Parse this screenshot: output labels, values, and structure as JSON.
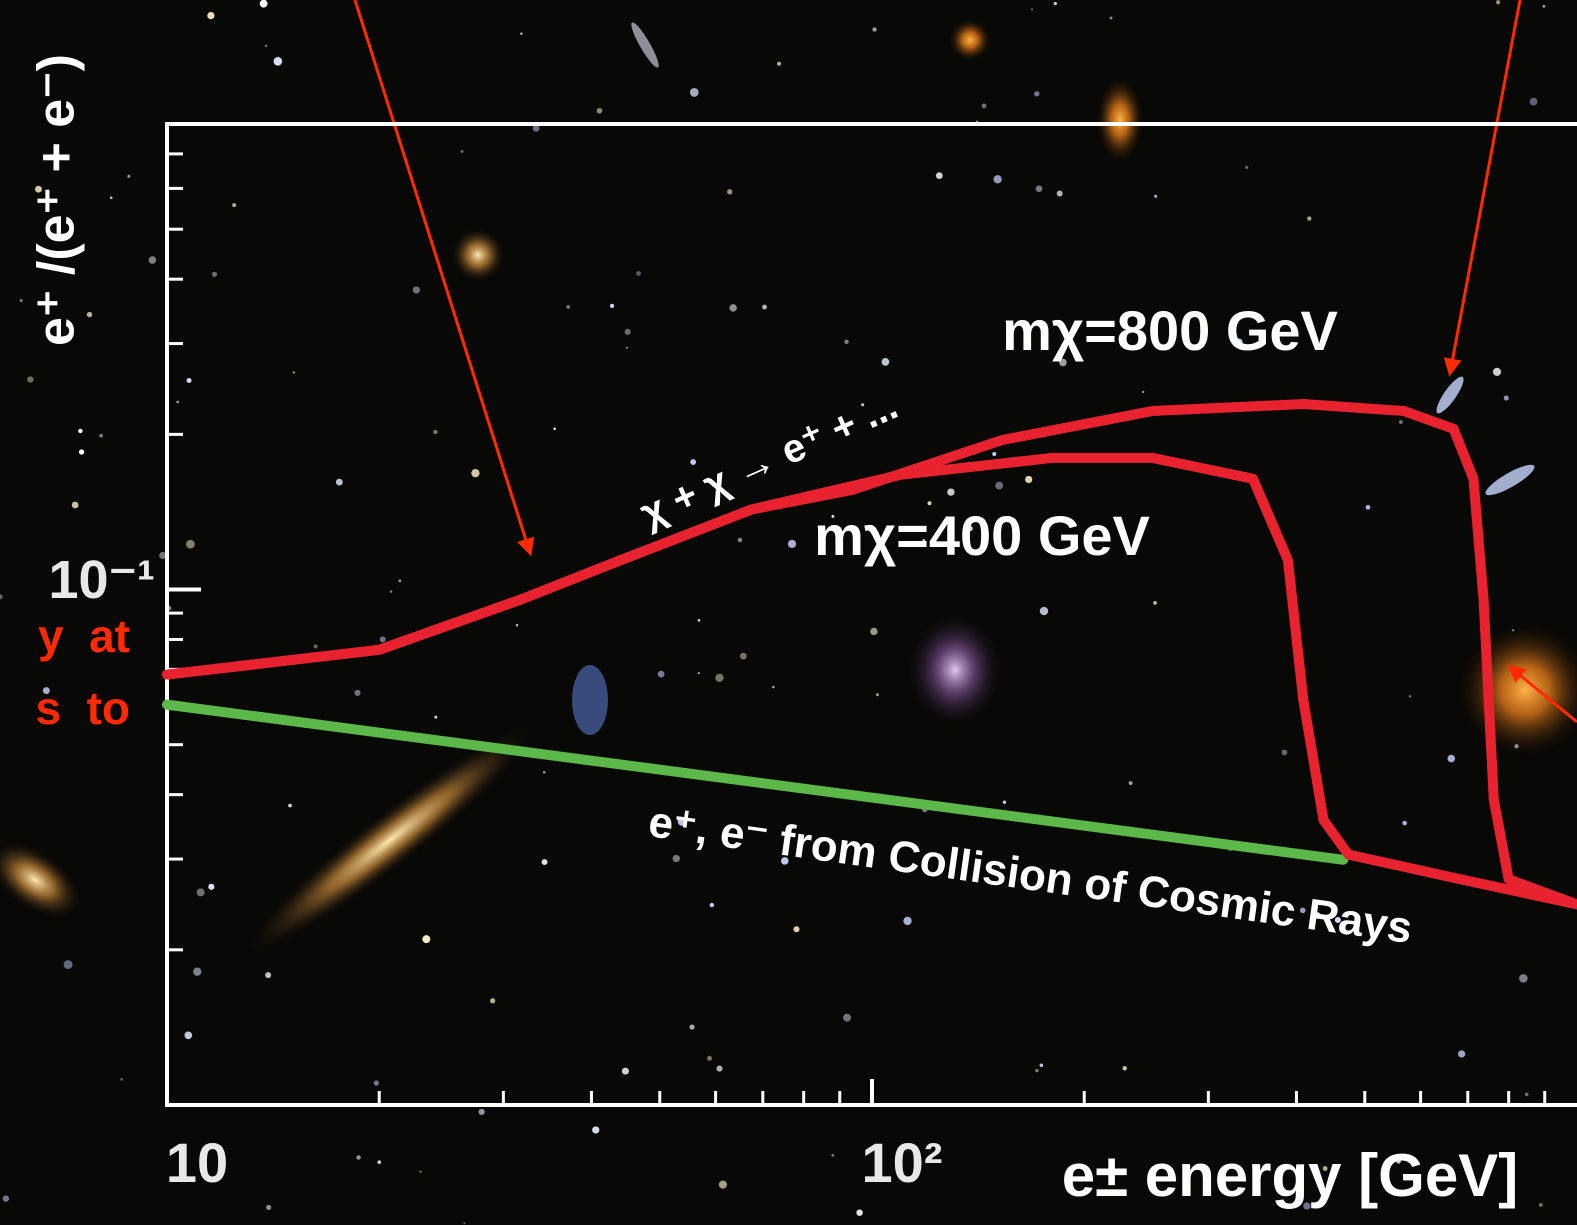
{
  "chart_data": {
    "type": "line",
    "log_x": true,
    "log_y": true,
    "ylabel": "e⁺ /(e⁺ + e⁻)",
    "xlabel": "e± energy [GeV]",
    "xlim": [
      10,
      1000
    ],
    "ylim": [
      0.01,
      0.8
    ],
    "xticks": [
      10,
      {
        "value": 100,
        "label": "10²"
      }
    ],
    "yticks": [
      {
        "value": 0.1,
        "label": "10⁻¹"
      }
    ],
    "series": [
      {
        "color": "#5cb848",
        "x": [
          10,
          466
        ],
        "values": [
          0.0598,
          0.0299
        ]
      },
      {
        "color": "#e8232f",
        "x": [
          10,
          20,
          31.8,
          44,
          67.5,
          110,
          180,
          250,
          347,
          389,
          409,
          437,
          474,
          668,
          1000
        ],
        "values": [
          0.0684,
          0.0764,
          0.0957,
          0.114,
          0.143,
          0.167,
          0.18,
          0.18,
          0.164,
          0.114,
          0.0611,
          0.0357,
          0.0306,
          0.0276,
          0.0245
        ]
      },
      {
        "color": "#e8232f",
        "x": [
          10,
          20,
          31.8,
          44,
          67.5,
          93.7,
          153,
          250,
          409,
          568,
          668,
          713,
          737,
          762,
          800,
          1000
        ],
        "values": [
          0.0684,
          0.0764,
          0.0957,
          0.114,
          0.143,
          0.156,
          0.195,
          0.222,
          0.229,
          0.222,
          0.205,
          0.164,
          0.0957,
          0.0391,
          0.0274,
          0.0245
        ]
      }
    ],
    "annotations": [
      {
        "text": "mχ=800 GeV"
      },
      {
        "text": "mχ=400 GeV"
      },
      {
        "text": "χ + χ → e⁺ + ..."
      },
      {
        "text": "e⁺, e⁻ from Collision of Cosmic Rays"
      },
      {
        "text": "y  at"
      },
      {
        "text": "s  to"
      }
    ]
  }
}
